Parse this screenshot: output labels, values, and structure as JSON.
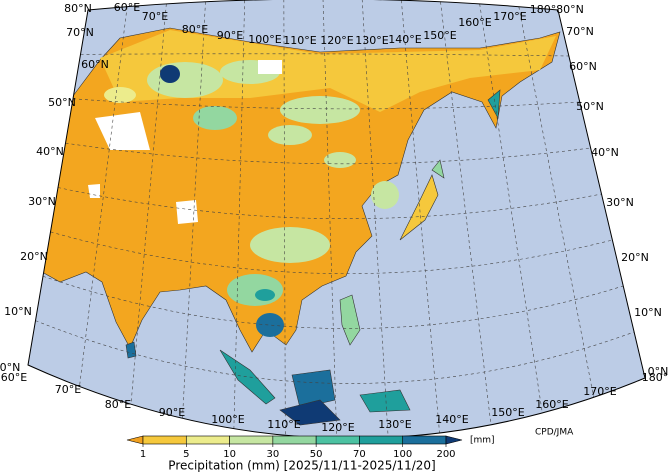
{
  "map": {
    "top_lon_labels": [
      "60°E",
      "70°E",
      "80°E",
      "90°E",
      "100°E",
      "110°E",
      "120°E",
      "130°E",
      "140°E",
      "150°E",
      "160°E",
      "170°E",
      "180°"
    ],
    "bottom_lon_labels": [
      "60°E",
      "70°E",
      "80°E",
      "90°E",
      "100°E",
      "110°E",
      "120°E",
      "130°E",
      "140°E",
      "150°E",
      "160°E",
      "170°E",
      "180°"
    ],
    "left_lat_labels": [
      "80°N",
      "70°N",
      "60°N",
      "50°N",
      "40°N",
      "30°N",
      "20°N",
      "10°N",
      "0°N"
    ],
    "right_lat_labels": [
      "80°N",
      "70°N",
      "60°N",
      "50°N",
      "40°N",
      "30°N",
      "20°N",
      "10°N",
      "0°N"
    ],
    "credit": "CPD/JMA"
  },
  "colorbar": {
    "ticks": [
      1,
      5,
      10,
      30,
      50,
      70,
      100,
      200
    ],
    "colors": [
      "#f0a020",
      "#f5c83c",
      "#ecec8c",
      "#c6e6a2",
      "#93d7a0",
      "#4cc2a2",
      "#1f9f9c",
      "#1b6f9c",
      "#0f3a74"
    ],
    "unit": "[mm]",
    "label": "Precipitation (mm) [2025/11/11-2025/11/20]"
  }
}
